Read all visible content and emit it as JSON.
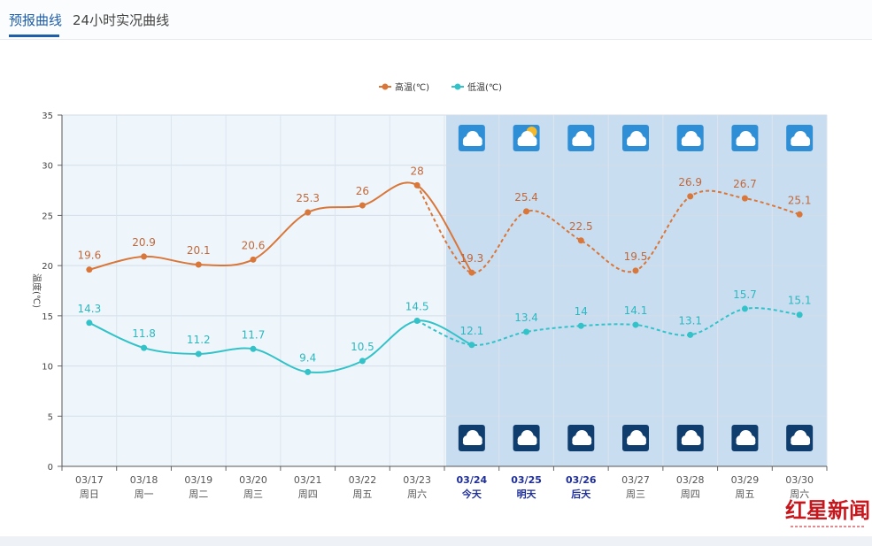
{
  "tabs": [
    {
      "label": "预报曲线",
      "active": true
    },
    {
      "label": "24小时实况曲线",
      "active": false
    }
  ],
  "watermark": "红星新闻",
  "chart_data": {
    "type": "line",
    "ylabel": "温度(℃)",
    "ylim": [
      0,
      35
    ],
    "yticks": [
      0,
      5,
      10,
      15,
      20,
      25,
      30,
      35
    ],
    "grid": true,
    "legend": "top-center",
    "dates": [
      "03/17",
      "03/18",
      "03/19",
      "03/20",
      "03/21",
      "03/22",
      "03/23",
      "03/24",
      "03/25",
      "03/26",
      "03/27",
      "03/28",
      "03/29",
      "03/30"
    ],
    "weekdays": [
      "周日",
      "周一",
      "周二",
      "周三",
      "周四",
      "周五",
      "周六",
      "今天",
      "明天",
      "后天",
      "周三",
      "周四",
      "周五",
      "周六"
    ],
    "highlighted": [
      7,
      8,
      9
    ],
    "forecast_start_index": 7,
    "series": [
      {
        "name": "高温(℃)",
        "color": "#d9773a",
        "values": [
          19.6,
          20.9,
          20.1,
          20.6,
          25.3,
          26,
          28,
          19.3,
          25.4,
          22.5,
          19.5,
          26.9,
          26.7,
          25.1
        ]
      },
      {
        "name": "低温(℃)",
        "color": "#33c2c8",
        "values": [
          14.3,
          11.8,
          11.2,
          11.7,
          9.4,
          10.5,
          14.5,
          12.1,
          13.4,
          14,
          14.1,
          13.1,
          15.7,
          15.1
        ]
      }
    ],
    "day_icons": [
      "cloudy-icon",
      "partly-sunny-icon",
      "cloudy-icon",
      "cloudy-icon",
      "cloudy-icon",
      "cloudy-icon",
      "cloudy-icon"
    ],
    "night_icons": [
      "cloudy-night-icon",
      "cloudy-night-icon",
      "cloudy-night-icon",
      "cloudy-night-icon",
      "cloudy-night-icon",
      "cloudy-night-icon",
      "cloudy-night-icon"
    ]
  }
}
